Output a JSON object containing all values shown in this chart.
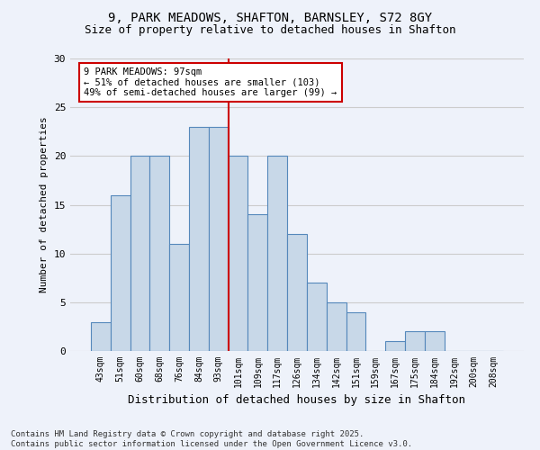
{
  "title1": "9, PARK MEADOWS, SHAFTON, BARNSLEY, S72 8GY",
  "title2": "Size of property relative to detached houses in Shafton",
  "xlabel": "Distribution of detached houses by size in Shafton",
  "ylabel": "Number of detached properties",
  "bar_labels": [
    "43sqm",
    "51sqm",
    "60sqm",
    "68sqm",
    "76sqm",
    "84sqm",
    "93sqm",
    "101sqm",
    "109sqm",
    "117sqm",
    "126sqm",
    "134sqm",
    "142sqm",
    "151sqm",
    "159sqm",
    "167sqm",
    "175sqm",
    "184sqm",
    "192sqm",
    "200sqm",
    "208sqm"
  ],
  "bar_values": [
    3,
    16,
    20,
    20,
    11,
    23,
    23,
    20,
    14,
    20,
    12,
    7,
    5,
    4,
    0,
    1,
    2,
    2,
    0,
    0,
    0
  ],
  "bar_color": "#c8d8e8",
  "bar_edge_color": "#5588bb",
  "grid_color": "#cccccc",
  "background_color": "#eef2fa",
  "red_line_x": 6.5,
  "annotation_title": "9 PARK MEADOWS: 97sqm",
  "annotation_line1": "← 51% of detached houses are smaller (103)",
  "annotation_line2": "49% of semi-detached houses are larger (99) →",
  "annotation_box_color": "#ffffff",
  "annotation_border_color": "#cc0000",
  "red_line_color": "#cc0000",
  "ylim": [
    0,
    30
  ],
  "yticks": [
    0,
    5,
    10,
    15,
    20,
    25,
    30
  ],
  "footer": "Contains HM Land Registry data © Crown copyright and database right 2025.\nContains public sector information licensed under the Open Government Licence v3.0."
}
